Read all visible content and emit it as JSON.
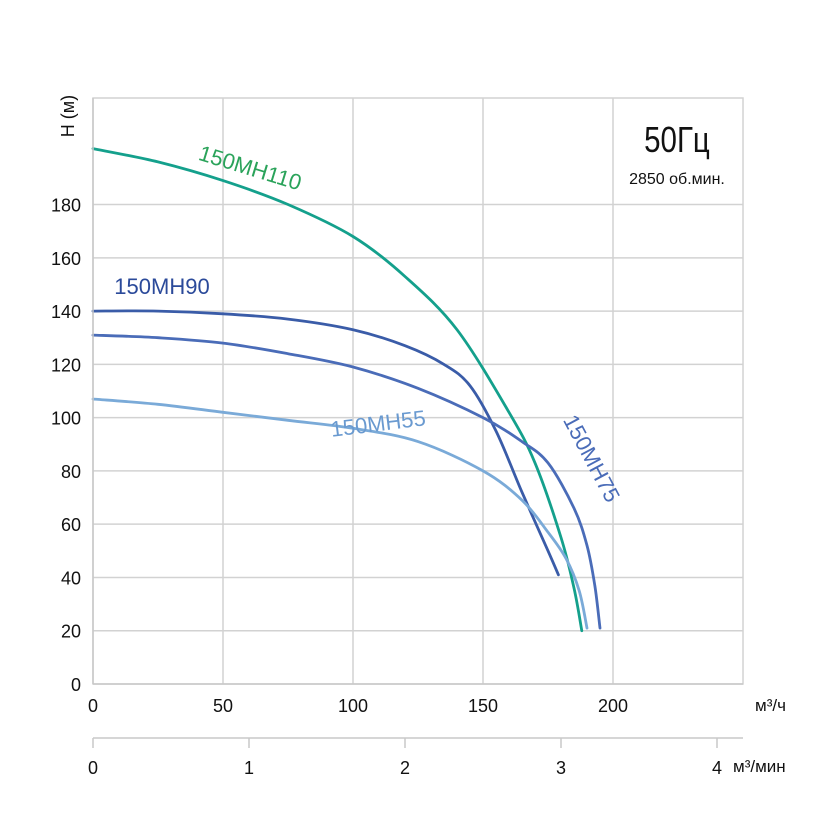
{
  "chart_data": {
    "type": "line",
    "ylabel": "H (м)",
    "x_unit_primary": "м³/ч",
    "x_unit_secondary": "м³/мин",
    "xlim": [
      0,
      250
    ],
    "ylim": [
      0,
      220
    ],
    "x_ticks": [
      0,
      50,
      100,
      150,
      200
    ],
    "y_ticks": [
      0,
      20,
      40,
      60,
      80,
      100,
      120,
      140,
      160,
      180
    ],
    "x2_ticks": [
      0,
      1,
      2,
      3,
      4
    ],
    "grid": true,
    "annotation": {
      "frequency": "50Гц",
      "speed": "2850 об.мин."
    },
    "series": [
      {
        "name": "150MH110",
        "color": "#14a08c",
        "label_color": "#2aa35a",
        "x": [
          0,
          25,
          50,
          75,
          100,
          120,
          140,
          160,
          170,
          180,
          185,
          188
        ],
        "y": [
          201,
          196,
          189,
          180,
          168,
          153,
          133,
          102,
          83,
          55,
          36,
          20
        ]
      },
      {
        "name": "150MH90",
        "color": "#3a5ca8",
        "label_color": "#2b4a9a",
        "x": [
          0,
          25,
          50,
          75,
          100,
          120,
          135,
          145,
          155,
          165,
          175,
          179
        ],
        "y": [
          140,
          140,
          139,
          137,
          133,
          127,
          120,
          112,
          95,
          72,
          50,
          41
        ]
      },
      {
        "name": "150MH75",
        "color": "#4a6cb8",
        "label_color": "#4a6cb8",
        "x": [
          0,
          25,
          50,
          75,
          100,
          125,
          150,
          165,
          175,
          185,
          190,
          193,
          195
        ],
        "y": [
          131,
          130,
          128,
          124,
          119,
          111,
          100,
          91,
          83,
          66,
          52,
          37,
          21
        ]
      },
      {
        "name": "150MH55",
        "color": "#7aaad8",
        "label_color": "#6a9ad0",
        "x": [
          0,
          25,
          50,
          75,
          100,
          125,
          150,
          165,
          175,
          182,
          187,
          190
        ],
        "y": [
          107,
          105,
          102,
          99,
          96,
          91,
          80,
          69,
          57,
          47,
          35,
          21
        ]
      }
    ]
  }
}
